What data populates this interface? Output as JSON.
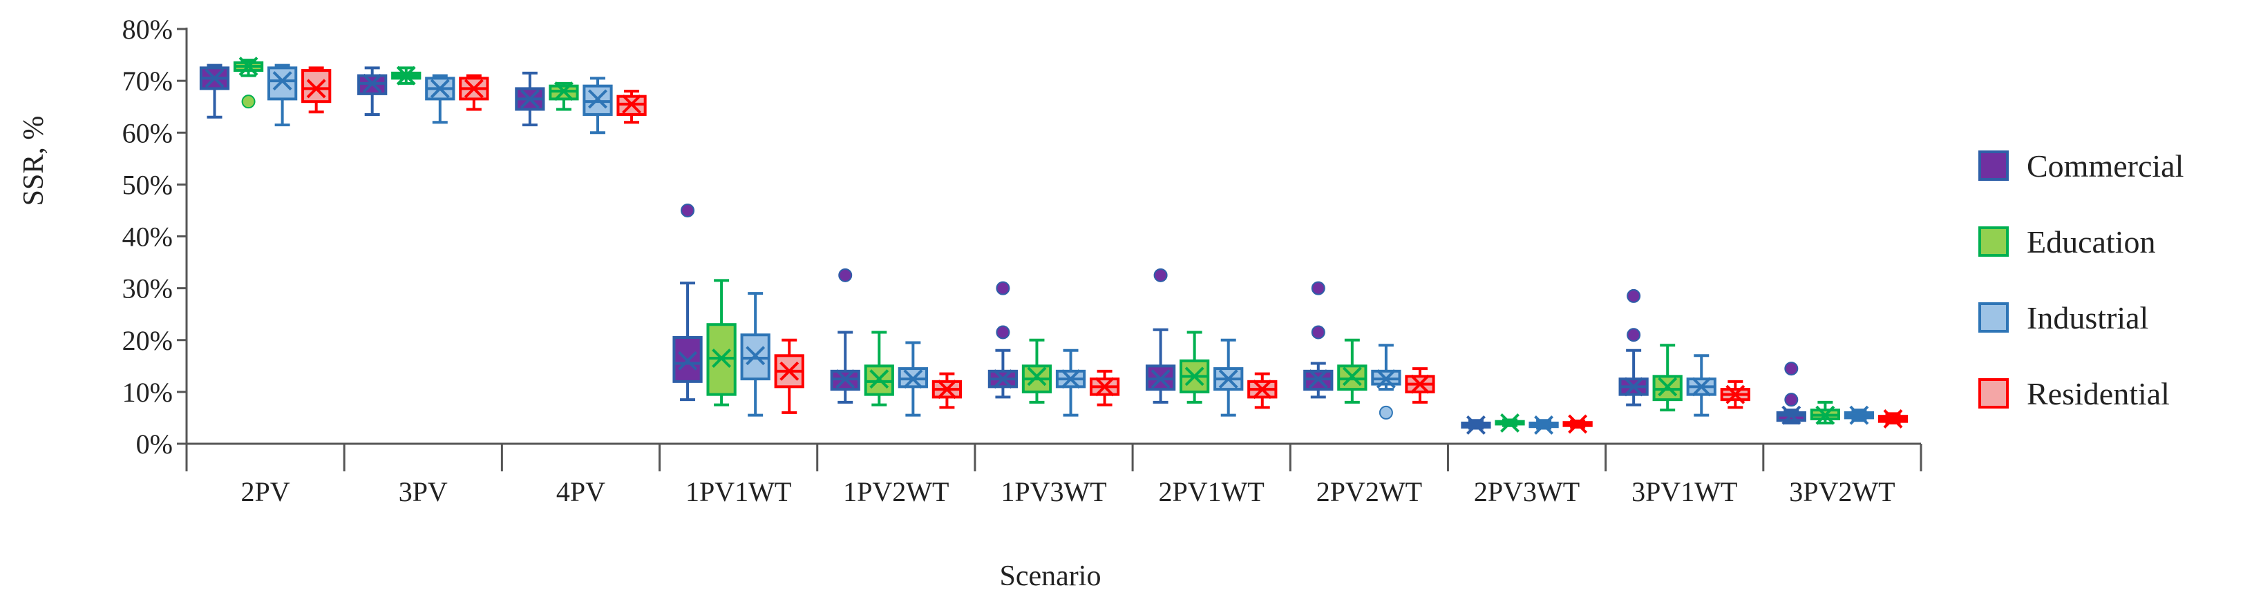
{
  "chart_data": {
    "type": "box",
    "xlabel": "Scenario",
    "ylabel": "SSR, %",
    "ylim": [
      0,
      80
    ],
    "yticks": [
      "0%",
      "10%",
      "20%",
      "30%",
      "40%",
      "50%",
      "60%",
      "70%",
      "80%"
    ],
    "grid": false,
    "legend_position": "right",
    "categories": [
      "2PV",
      "3PV",
      "4PV",
      "1PV1WT",
      "1PV2WT",
      "1PV3WT",
      "2PV1WT",
      "2PV2WT",
      "2PV3WT",
      "3PV1WT",
      "3PV2WT"
    ],
    "series": [
      {
        "name": "Commercial",
        "fill": "#7030A0",
        "stroke": "#2E5FA8",
        "boxes": [
          {
            "min": 63,
            "q1": 68.5,
            "median": 70.5,
            "q3": 72.5,
            "max": 73,
            "mean": 70.5,
            "outliers": []
          },
          {
            "min": 63.5,
            "q1": 67.5,
            "median": 69.5,
            "q3": 71,
            "max": 72.5,
            "mean": 69.5,
            "outliers": []
          },
          {
            "min": 61.5,
            "q1": 64.5,
            "median": 66.5,
            "q3": 68.5,
            "max": 71.5,
            "mean": 66.5,
            "outliers": []
          },
          {
            "min": 8.5,
            "q1": 12,
            "median": 15.5,
            "q3": 20.5,
            "max": 31,
            "mean": 16,
            "outliers": [
              45
            ]
          },
          {
            "min": 8,
            "q1": 10.5,
            "median": 12.5,
            "q3": 14,
            "max": 21.5,
            "mean": 12.5,
            "outliers": [
              32.5
            ]
          },
          {
            "min": 9,
            "q1": 11,
            "median": 12.5,
            "q3": 14,
            "max": 18,
            "mean": 12.5,
            "outliers": [
              21.5,
              30
            ]
          },
          {
            "min": 8,
            "q1": 10.5,
            "median": 12.5,
            "q3": 15,
            "max": 22,
            "mean": 12.5,
            "outliers": [
              32.5
            ]
          },
          {
            "min": 9,
            "q1": 10.5,
            "median": 12.5,
            "q3": 14,
            "max": 15.5,
            "mean": 12.5,
            "outliers": [
              21.5,
              30
            ]
          },
          {
            "min": 3,
            "q1": 3.2,
            "median": 3.6,
            "q3": 4,
            "max": 4.5,
            "mean": 3.6,
            "outliers": []
          },
          {
            "min": 7.5,
            "q1": 9.5,
            "median": 11,
            "q3": 12.5,
            "max": 18,
            "mean": 11,
            "outliers": [
              21,
              28.5
            ]
          },
          {
            "min": 4,
            "q1": 4.5,
            "median": 5.5,
            "q3": 6,
            "max": 6.5,
            "mean": 5.5,
            "outliers": [
              8.5,
              14.5
            ]
          }
        ]
      },
      {
        "name": "Education",
        "fill": "#92D050",
        "stroke": "#00B050",
        "boxes": [
          {
            "min": 71,
            "q1": 72,
            "median": 72.8,
            "q3": 73.5,
            "max": 74,
            "mean": 72.8,
            "outliers": [
              66
            ]
          },
          {
            "min": 69.5,
            "q1": 70.5,
            "median": 71,
            "q3": 71.5,
            "max": 72.5,
            "mean": 71,
            "outliers": []
          },
          {
            "min": 64.5,
            "q1": 66.5,
            "median": 68,
            "q3": 69,
            "max": 69.5,
            "mean": 68,
            "outliers": []
          },
          {
            "min": 7.5,
            "q1": 9.5,
            "median": 16.5,
            "q3": 23,
            "max": 31.5,
            "mean": 16.5,
            "outliers": []
          },
          {
            "min": 7.5,
            "q1": 9.5,
            "median": 12,
            "q3": 15,
            "max": 21.5,
            "mean": 12.5,
            "outliers": []
          },
          {
            "min": 8,
            "q1": 10,
            "median": 12.5,
            "q3": 15,
            "max": 20,
            "mean": 13,
            "outliers": []
          },
          {
            "min": 8,
            "q1": 10,
            "median": 13,
            "q3": 16,
            "max": 21.5,
            "mean": 13,
            "outliers": []
          },
          {
            "min": 8,
            "q1": 10.5,
            "median": 12.5,
            "q3": 15,
            "max": 20,
            "mean": 13,
            "outliers": []
          },
          {
            "min": 3.5,
            "q1": 3.8,
            "median": 4,
            "q3": 4.3,
            "max": 4.6,
            "mean": 4,
            "outliers": []
          },
          {
            "min": 6.5,
            "q1": 8.5,
            "median": 10.5,
            "q3": 13,
            "max": 19,
            "mean": 11,
            "outliers": []
          },
          {
            "min": 4,
            "q1": 4.8,
            "median": 5.5,
            "q3": 6.5,
            "max": 8,
            "mean": 5.5,
            "outliers": []
          }
        ]
      },
      {
        "name": "Industrial",
        "fill": "#9DC3E6",
        "stroke": "#2E75B6",
        "boxes": [
          {
            "min": 61.5,
            "q1": 66.5,
            "median": 70,
            "q3": 72.5,
            "max": 73,
            "mean": 70,
            "outliers": []
          },
          {
            "min": 62,
            "q1": 66.5,
            "median": 68.5,
            "q3": 70.5,
            "max": 71,
            "mean": 68.5,
            "outliers": []
          },
          {
            "min": 60,
            "q1": 63.5,
            "median": 66,
            "q3": 69,
            "max": 70.5,
            "mean": 66.5,
            "outliers": []
          },
          {
            "min": 5.5,
            "q1": 12.5,
            "median": 16.5,
            "q3": 21,
            "max": 29,
            "mean": 17,
            "outliers": []
          },
          {
            "min": 5.5,
            "q1": 11,
            "median": 12.5,
            "q3": 14.5,
            "max": 19.5,
            "mean": 12.5,
            "outliers": []
          },
          {
            "min": 5.5,
            "q1": 11,
            "median": 12.5,
            "q3": 14,
            "max": 18,
            "mean": 12.5,
            "outliers": []
          },
          {
            "min": 5.5,
            "q1": 10.5,
            "median": 12.5,
            "q3": 14.5,
            "max": 20,
            "mean": 12.5,
            "outliers": []
          },
          {
            "min": 10.5,
            "q1": 11.5,
            "median": 12.5,
            "q3": 14,
            "max": 19,
            "mean": 12.5,
            "outliers": [
              6
            ]
          },
          {
            "min": 3,
            "q1": 3.3,
            "median": 3.6,
            "q3": 4,
            "max": 4.5,
            "mean": 3.6,
            "outliers": []
          },
          {
            "min": 5.5,
            "q1": 9.5,
            "median": 11,
            "q3": 12.5,
            "max": 17,
            "mean": 11,
            "outliers": []
          },
          {
            "min": 4.5,
            "q1": 5,
            "median": 5.5,
            "q3": 6,
            "max": 6.5,
            "mean": 5.5,
            "outliers": []
          }
        ]
      },
      {
        "name": "Residential",
        "fill": "#F4A6A6",
        "stroke": "#FF0000",
        "boxes": [
          {
            "min": 64,
            "q1": 66,
            "median": 68.5,
            "q3": 72,
            "max": 72.5,
            "mean": 68.5,
            "outliers": []
          },
          {
            "min": 64.5,
            "q1": 66.5,
            "median": 68.5,
            "q3": 70.5,
            "max": 71,
            "mean": 68.5,
            "outliers": []
          },
          {
            "min": 62,
            "q1": 63.5,
            "median": 65.5,
            "q3": 67,
            "max": 68,
            "mean": 65.5,
            "outliers": []
          },
          {
            "min": 6,
            "q1": 11,
            "median": 14,
            "q3": 17,
            "max": 20,
            "mean": 14,
            "outliers": []
          },
          {
            "min": 7,
            "q1": 9,
            "median": 10.5,
            "q3": 12,
            "max": 13.5,
            "mean": 10.5,
            "outliers": []
          },
          {
            "min": 7.5,
            "q1": 9.5,
            "median": 11,
            "q3": 12.5,
            "max": 14,
            "mean": 11,
            "outliers": []
          },
          {
            "min": 7,
            "q1": 9,
            "median": 10.5,
            "q3": 12,
            "max": 13.5,
            "mean": 10.5,
            "outliers": []
          },
          {
            "min": 8,
            "q1": 10,
            "median": 11.5,
            "q3": 13,
            "max": 14.5,
            "mean": 11.5,
            "outliers": []
          },
          {
            "min": 3.2,
            "q1": 3.5,
            "median": 3.8,
            "q3": 4.1,
            "max": 4.4,
            "mean": 3.8,
            "outliers": []
          },
          {
            "min": 7,
            "q1": 8.5,
            "median": 9.5,
            "q3": 10.5,
            "max": 12,
            "mean": 9.5,
            "outliers": []
          },
          {
            "min": 4,
            "q1": 4.3,
            "median": 4.8,
            "q3": 5.3,
            "max": 5.8,
            "mean": 4.8,
            "outliers": []
          }
        ]
      }
    ]
  }
}
